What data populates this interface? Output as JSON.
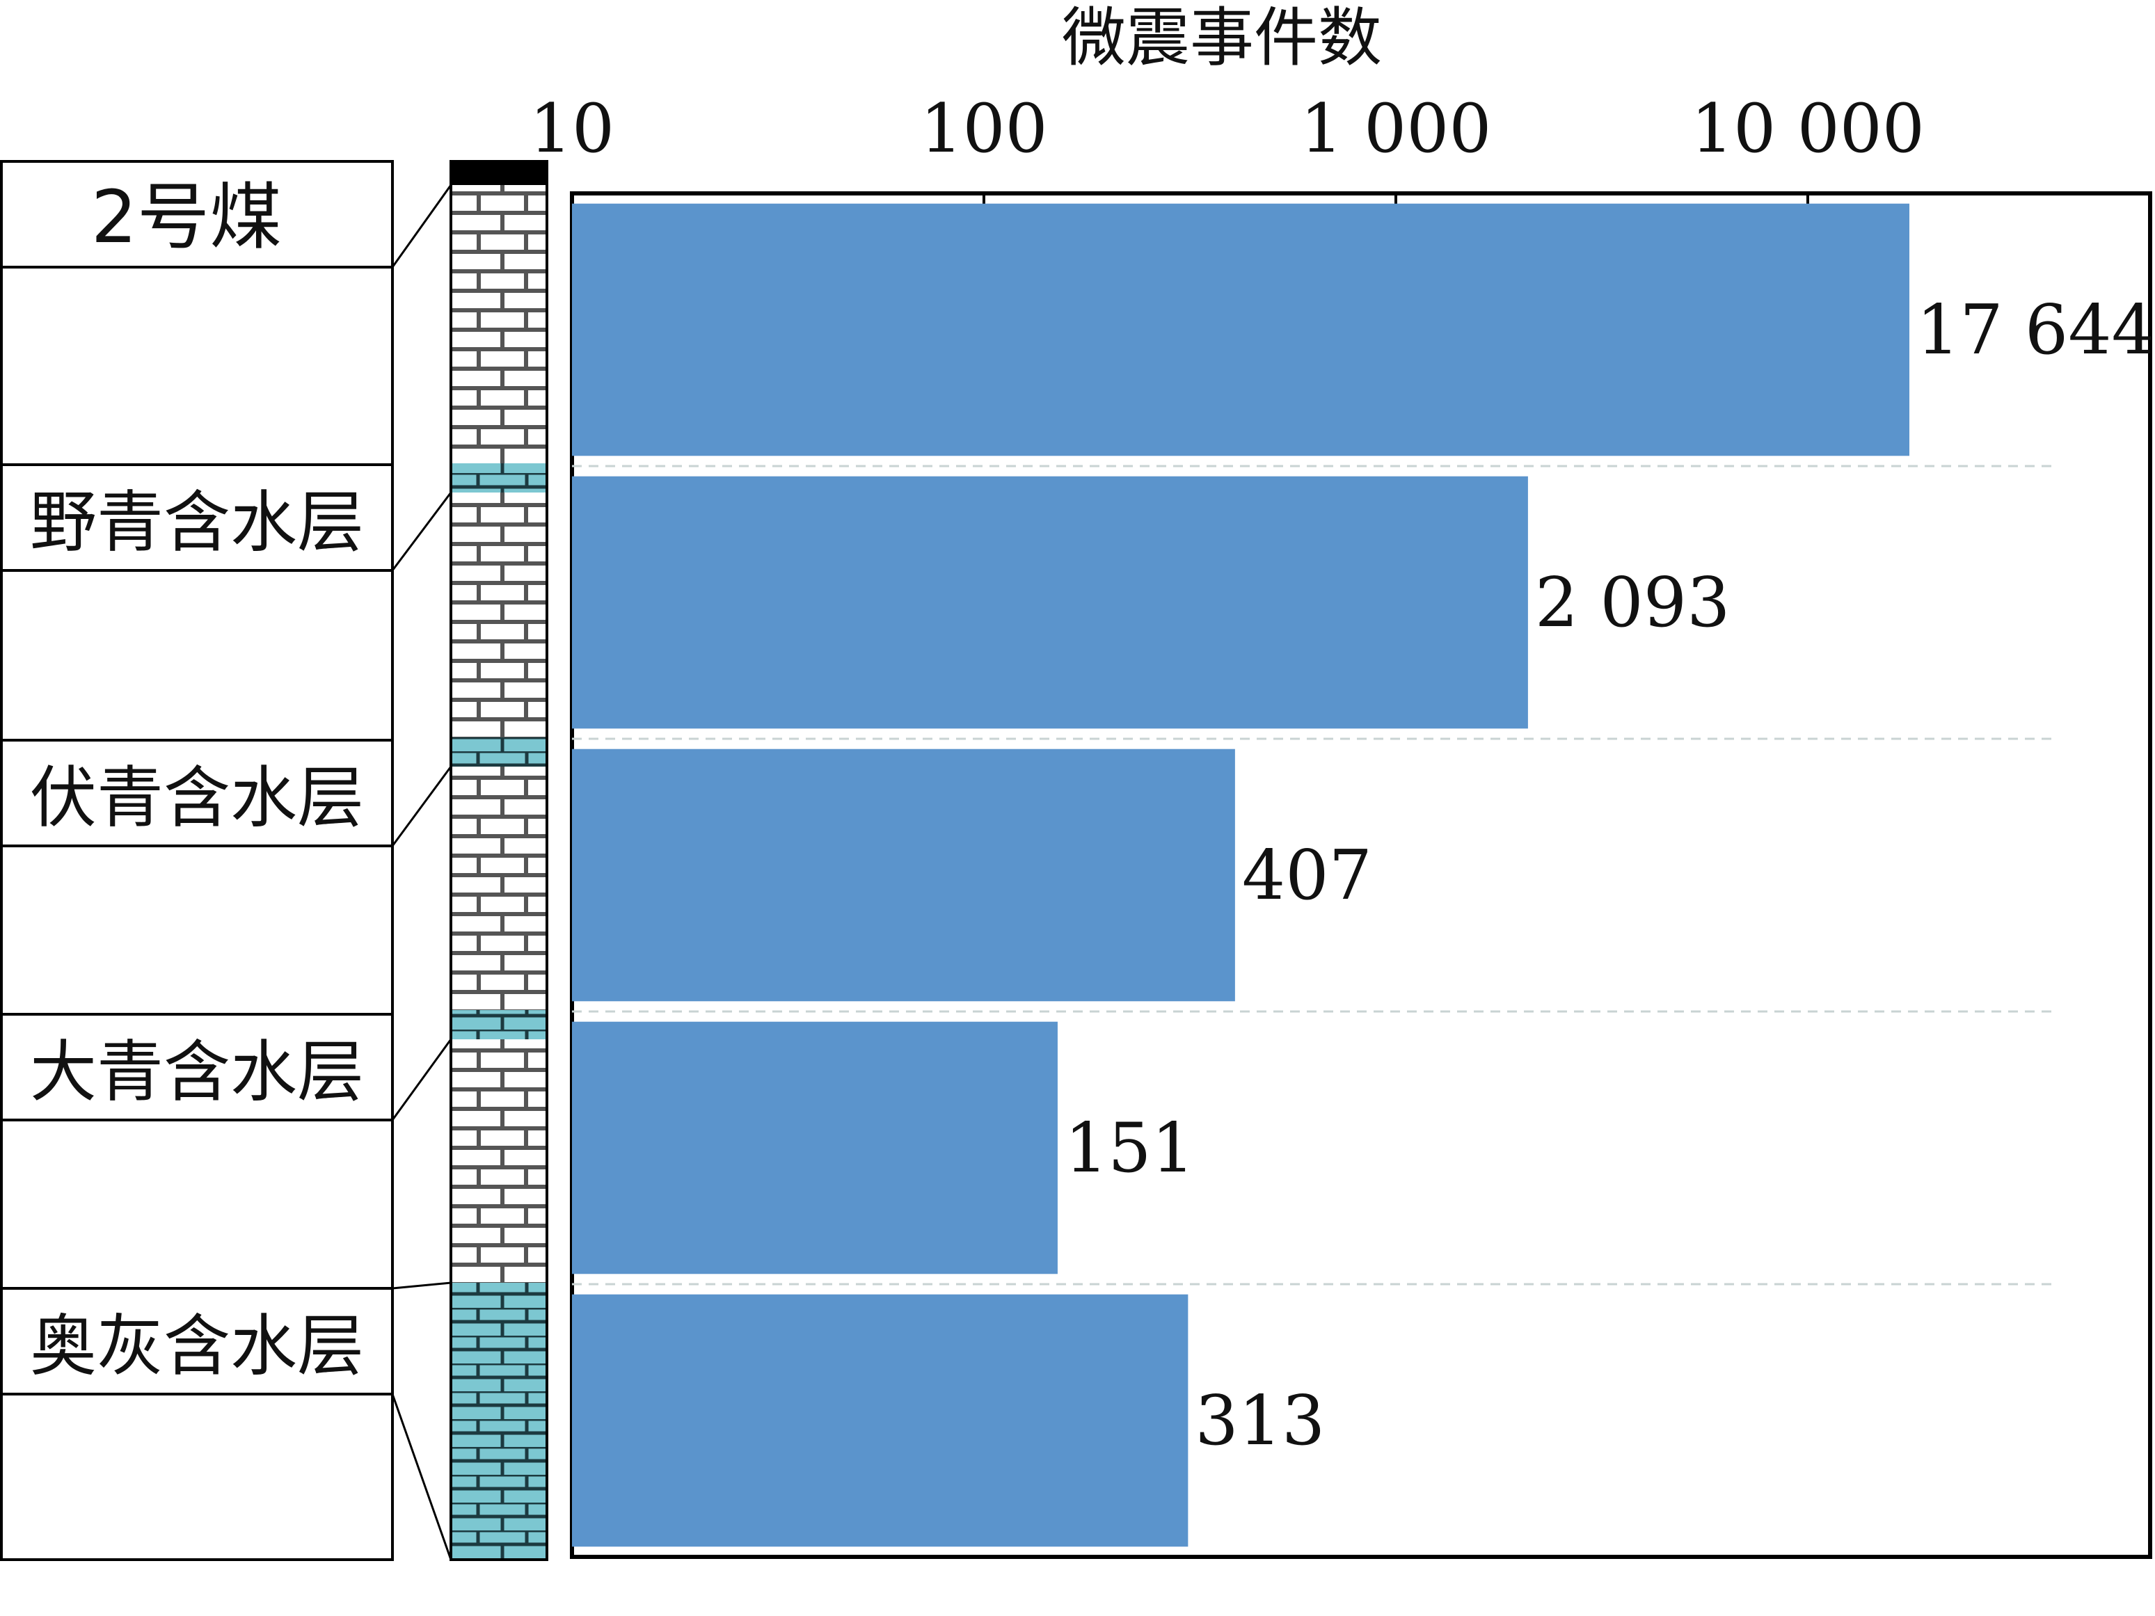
{
  "chart_data": {
    "type": "bar",
    "orientation": "horizontal",
    "xscale": "log",
    "xlabel": "微震事件数",
    "xlim": [
      10,
      60000
    ],
    "xticks": [
      {
        "value": 10,
        "label": "10"
      },
      {
        "value": 100,
        "label": "100"
      },
      {
        "value": 1000,
        "label": "1 000"
      },
      {
        "value": 10000,
        "label": "10 000"
      }
    ],
    "categories": [
      "2号煤",
      "野青含水层",
      "伏青含水层",
      "大青含水层",
      "奥灰含水层"
    ],
    "values": [
      17644,
      2093,
      407,
      151,
      313
    ],
    "value_labels": [
      "17 644",
      "2 093",
      "407",
      "151",
      "313"
    ],
    "bar_color": "#5b94cc",
    "grid": "horizontal dashed separators",
    "legend": "none",
    "stratigraphic_column": {
      "shale_color": "#ffffff",
      "limestone_color": "#7cc7d1",
      "coal_color": "#000000"
    }
  }
}
